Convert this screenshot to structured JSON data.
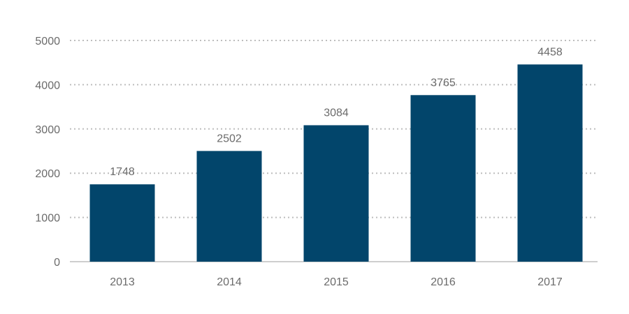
{
  "chart_data": {
    "type": "bar",
    "title": "",
    "xlabel": "",
    "ylabel": "",
    "categories": [
      "2013",
      "2014",
      "2015",
      "2016",
      "2017"
    ],
    "values": [
      1748,
      2502,
      3084,
      3765,
      4458
    ],
    "data_labels": [
      "1748",
      "2502",
      "3084",
      "3765",
      "4458"
    ],
    "yticks": [
      0,
      1000,
      2000,
      3000,
      4000,
      5000
    ],
    "ytick_labels": [
      "0",
      "1000",
      "2000",
      "3000",
      "4000",
      "5000"
    ],
    "ylim": [
      0,
      5000
    ],
    "grid": true,
    "grid_style": "dotted",
    "legend": "none",
    "bar_color": "#02456b",
    "grid_color": "#bdbdbd",
    "label_color": "#6b6b6b"
  }
}
